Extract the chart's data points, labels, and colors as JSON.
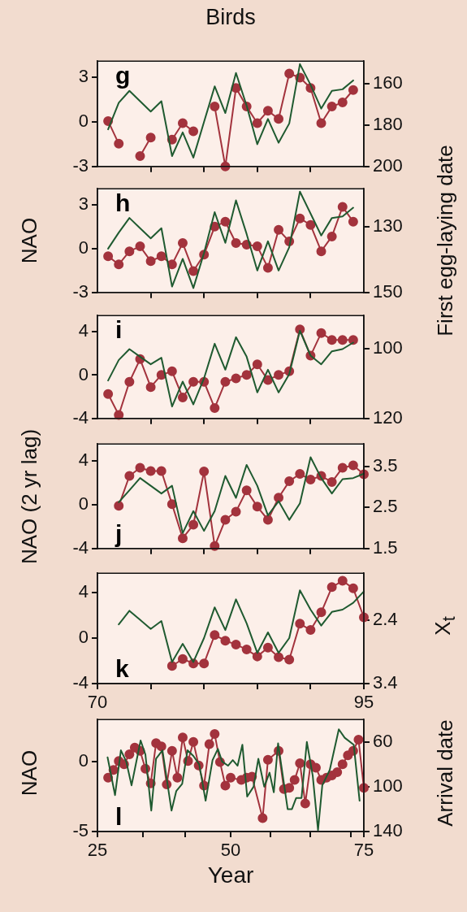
{
  "chart_data": [
    {
      "type": "line",
      "title": "Birds",
      "annotations": [
        "g"
      ],
      "xlim": [
        70,
        95
      ],
      "xticks": [
        {
          "value": 75,
          "label": null
        },
        {
          "value": 80,
          "label": null
        },
        {
          "value": 85,
          "label": null
        },
        {
          "value": 90,
          "label": null
        }
      ],
      "ylim": [
        -3,
        4.1
      ],
      "yticks": [
        -3,
        0,
        3
      ],
      "y2lim": [
        200,
        149
      ],
      "y2ticks": [
        160,
        180,
        200
      ],
      "tick_labels": "y",
      "series": [
        {
          "color": "#1f5a30",
          "marker": "none",
          "x": [
            71,
            72,
            73,
            74,
            75,
            76,
            77,
            78,
            79,
            80,
            81,
            82,
            83,
            84,
            85,
            86,
            87,
            88,
            89,
            90,
            91,
            92,
            93,
            94
          ],
          "values": [
            -0.5,
            1.3,
            2.1,
            1.4,
            0.7,
            1.4,
            -2.3,
            -0.7,
            -2.4,
            0,
            2.4,
            0.6,
            3.3,
            1.1,
            -1.5,
            0.2,
            -1.4,
            -0.1,
            3.9,
            2.5,
            0.9,
            2.1,
            2.2,
            2.8
          ]
        },
        {
          "color": "#a3333d",
          "marker": "circle",
          "axis": "y2",
          "x": [
            71,
            72,
            73,
            74,
            75,
            76,
            77,
            78,
            79,
            80,
            81,
            82,
            83,
            84,
            85,
            86,
            87,
            88,
            89,
            90,
            91,
            92,
            93,
            94
          ],
          "values": [
            178,
            189,
            null,
            195,
            186,
            null,
            187,
            179,
            183,
            null,
            171,
            200,
            162,
            171,
            179,
            173,
            177,
            155,
            157,
            162,
            179,
            171,
            169,
            163
          ]
        }
      ]
    },
    {
      "type": "line",
      "annotations": [
        "h"
      ],
      "ylabel": "NAO",
      "y2label": "First egg-laying date",
      "xlim": [
        70,
        95
      ],
      "xticks": [
        {
          "value": 75,
          "label": null
        },
        {
          "value": 80,
          "label": null
        },
        {
          "value": 85,
          "label": null
        },
        {
          "value": 90,
          "label": null
        }
      ],
      "ylim": [
        -3,
        4.1
      ],
      "yticks": [
        -3,
        0,
        3
      ],
      "y2lim": [
        150,
        118.5
      ],
      "y2ticks": [
        130,
        150
      ],
      "tick_labels": "y",
      "series": [
        {
          "color": "#1f5a30",
          "marker": "none",
          "x": [
            71,
            72,
            73,
            74,
            75,
            76,
            77,
            78,
            79,
            80,
            81,
            82,
            83,
            84,
            85,
            86,
            87,
            88,
            89,
            90,
            91,
            92,
            93,
            94
          ],
          "values": [
            0,
            1.1,
            2.1,
            1.4,
            0.7,
            1.4,
            -2.6,
            -0.7,
            -2.7,
            -0.3,
            2.5,
            0.4,
            3.3,
            1.0,
            -1.5,
            0.5,
            -1.5,
            0.1,
            3.9,
            2.4,
            0.9,
            2.1,
            2.2,
            2.8
          ]
        },
        {
          "color": "#a3333d",
          "marker": "circle",
          "axis": "y2",
          "x": [
            71,
            72,
            73,
            74,
            75,
            76,
            77,
            78,
            79,
            80,
            81,
            82,
            83,
            84,
            85,
            86,
            87,
            88,
            89,
            90,
            91,
            92,
            93,
            94
          ],
          "values": [
            139,
            141.5,
            137.5,
            136,
            140.5,
            139,
            141.5,
            135,
            143.5,
            138.5,
            130,
            128.5,
            135,
            135.5,
            136,
            142.5,
            131,
            134.5,
            127.5,
            129.5,
            137.5,
            133,
            124,
            128.5
          ]
        }
      ]
    },
    {
      "type": "line",
      "annotations": [
        "i"
      ],
      "xlim": [
        70,
        95
      ],
      "xticks": [
        {
          "value": 75,
          "label": null
        },
        {
          "value": 80,
          "label": null
        },
        {
          "value": 85,
          "label": null
        },
        {
          "value": 90,
          "label": null
        }
      ],
      "ylim": [
        -4,
        5.5
      ],
      "yticks": [
        -4,
        0,
        4
      ],
      "y2lim": [
        120,
        90.5
      ],
      "y2ticks": [
        100,
        120
      ],
      "tick_labels": "y",
      "series": [
        {
          "color": "#1f5a30",
          "marker": "none",
          "x": [
            71,
            72,
            73,
            74,
            75,
            76,
            77,
            78,
            79,
            80,
            81,
            82,
            83,
            84,
            85,
            86,
            87,
            88,
            89,
            90,
            91,
            92,
            93,
            94
          ],
          "values": [
            -0.5,
            1.4,
            2.4,
            1.7,
            1.0,
            1.6,
            -2.9,
            -0.6,
            -2.7,
            -0.3,
            2.9,
            0.5,
            3.5,
            1.7,
            -1.6,
            0.5,
            -1.6,
            0.1,
            4.1,
            1.8,
            1.0,
            2.2,
            2.4,
            3.0
          ]
        },
        {
          "color": "#a3333d",
          "marker": "circle",
          "axis": "y2",
          "x": [
            71,
            72,
            73,
            74,
            75,
            76,
            77,
            78,
            79,
            80,
            81,
            82,
            83,
            84,
            85,
            86,
            87,
            88,
            89,
            90,
            91,
            92,
            93,
            94
          ],
          "values": [
            113,
            119,
            109.5,
            103,
            111,
            107.5,
            106.5,
            114,
            109.5,
            109.5,
            117,
            109.5,
            108.5,
            107.5,
            104.5,
            109,
            107.5,
            106.5,
            94.5,
            102,
            95.5,
            97.5,
            97.5,
            97.5
          ]
        }
      ]
    },
    {
      "type": "line",
      "annotations": [
        "j"
      ],
      "ylabel": "NAO (2 yr lag)",
      "xlim": [
        70,
        95
      ],
      "xticks": [
        {
          "value": 75,
          "label": null
        },
        {
          "value": 80,
          "label": null
        },
        {
          "value": 85,
          "label": null
        },
        {
          "value": 90,
          "label": null
        }
      ],
      "ylim": [
        -4,
        5.5
      ],
      "yticks": [
        -4,
        0,
        4
      ],
      "y2lim": [
        1.5,
        4.05
      ],
      "y2ticks": [
        1.5,
        2.5,
        3.5
      ],
      "tick_labels": "y",
      "series": [
        {
          "color": "#1f5a30",
          "marker": "none",
          "x": [
            72,
            73,
            74,
            75,
            76,
            77,
            78,
            79,
            80,
            81,
            82,
            83,
            84,
            85,
            86,
            87,
            88,
            89,
            90,
            91,
            92,
            93,
            94,
            95
          ],
          "values": [
            0.2,
            1.3,
            2.4,
            1.7,
            1.0,
            1.7,
            -2.6,
            -0.6,
            -2.4,
            -0.6,
            2.6,
            0.6,
            3.6,
            1.7,
            -1.0,
            0.3,
            -1.4,
            0.1,
            4.3,
            2.4,
            1.0,
            2.3,
            2.4,
            2.8
          ]
        },
        {
          "color": "#a3333d",
          "marker": "circle",
          "axis": "y2",
          "x": [
            72,
            73,
            74,
            75,
            76,
            77,
            78,
            79,
            80,
            81,
            82,
            83,
            84,
            85,
            86,
            87,
            88,
            89,
            90,
            91,
            92,
            93,
            94,
            95
          ],
          "values": [
            2.54,
            3.27,
            3.47,
            3.39,
            3.39,
            2.58,
            1.75,
            2.08,
            3.38,
            1.56,
            2.2,
            2.4,
            2.92,
            2.52,
            2.2,
            2.74,
            3.14,
            3.32,
            3.18,
            3.27,
            3.12,
            3.47,
            3.53,
            3.31
          ]
        }
      ]
    },
    {
      "type": "line",
      "annotations": [
        "k"
      ],
      "y2label": "X$_{t}$",
      "xlim": [
        70,
        95
      ],
      "xticks": [
        70,
        {
          "value": 75,
          "label": null
        },
        {
          "value": 80,
          "label": null
        },
        {
          "value": 85,
          "label": null
        },
        {
          "value": 90,
          "label": null
        },
        95
      ],
      "ylim": [
        -4,
        5.7
      ],
      "yticks": [
        -4,
        0,
        4
      ],
      "y2lim": [
        3.4,
        1.65
      ],
      "y2ticks": [
        2.4,
        3.4
      ],
      "series": [
        {
          "color": "#1f5a30",
          "marker": "none",
          "x": [
            72,
            73,
            74,
            75,
            76,
            77,
            78,
            79,
            80,
            81,
            82,
            83,
            84,
            85,
            86,
            87,
            88,
            89,
            90,
            91,
            92,
            93,
            94,
            95
          ],
          "values": [
            1.2,
            2.4,
            1.6,
            0.8,
            1.5,
            -2.1,
            -0.5,
            -2.1,
            0,
            2.7,
            0.7,
            3.4,
            1.3,
            -1.3,
            0.5,
            -1.3,
            0,
            4.2,
            2.5,
            1.1,
            2.3,
            2.5,
            3.1,
            4.1
          ]
        },
        {
          "color": "#a3333d",
          "marker": "circle",
          "axis": "y2",
          "x": [
            77,
            78,
            79,
            80,
            81,
            82,
            83,
            84,
            85,
            86,
            87,
            88,
            89,
            90,
            91,
            92,
            93,
            94,
            95
          ],
          "values": [
            3.12,
            3.01,
            3.08,
            3.08,
            2.63,
            2.72,
            2.78,
            2.86,
            2.97,
            2.83,
            2.98,
            3.02,
            2.45,
            2.55,
            2.27,
            1.87,
            1.77,
            1.89,
            2.35
          ]
        }
      ]
    },
    {
      "type": "line",
      "annotations": [
        "l"
      ],
      "ylabel": "NAO",
      "y2label": "Arrival date",
      "xlabel": "Year",
      "xlim": [
        25,
        75
      ],
      "xticks": [
        25,
        {
          "value": 33.5,
          "label": null
        },
        {
          "value": 41.5,
          "label": null
        },
        50,
        {
          "value": 57.5,
          "label": null
        },
        {
          "value": 65,
          "label": null
        },
        {
          "value": 72.5,
          "label": null
        },
        75
      ],
      "ylim": [
        -5,
        3
      ],
      "yticks": [
        -5,
        0
      ],
      "y2lim": [
        140,
        40
      ],
      "y2ticks": [
        60,
        100,
        140
      ],
      "series": [
        {
          "color": "#1f5a30",
          "marker": "none",
          "x": [
            26.9,
            28.3,
            29.4,
            30.4,
            31.4,
            33.1,
            34.0,
            35.1,
            36.0,
            37.2,
            38.9,
            39.8,
            40.9,
            41.9,
            43.0,
            44.1,
            45.3,
            46.6,
            47.6,
            48.4,
            49.5,
            50.4,
            51.3,
            52.2,
            53.1,
            54.3,
            55.2,
            56.3,
            57.3,
            58.1,
            58.9,
            60.7,
            61.5,
            62.3,
            63.3,
            64.3,
            65.4,
            66.4,
            67.2,
            68.6,
            70.3,
            71.4,
            73.1,
            74.2
          ],
          "values": [
            0.3,
            -2.4,
            0.8,
            0,
            -1.7,
            1.5,
            0.5,
            -3.5,
            0.2,
            0.8,
            -3.5,
            -2.1,
            -1.6,
            0.8,
            0.4,
            -0.2,
            -2.8,
            0.1,
            0.9,
            0,
            -0.3,
            0.1,
            -0.3,
            1.2,
            -2.5,
            -1.8,
            0.2,
            -1.8,
            -0.8,
            -2.2,
            1.3,
            -3.4,
            -3.4,
            -2.6,
            -2.6,
            1.4,
            -1.0,
            -4.9,
            -1.7,
            -0.6,
            2.3,
            1.7,
            1.2,
            -2.8
          ]
        },
        {
          "color": "#a3333d",
          "marker": "circle",
          "axis": "y2",
          "x": [
            27,
            28,
            29,
            30,
            31,
            32,
            33,
            34,
            35,
            36,
            37,
            38,
            39,
            40,
            41,
            42,
            43,
            44,
            45,
            46,
            47,
            48,
            49,
            50,
            52,
            53,
            54,
            56,
            57,
            59,
            60,
            61,
            62,
            63,
            64,
            65,
            66,
            67,
            68,
            69,
            70,
            71,
            72,
            73,
            74,
            75
          ],
          "values": [
            92,
            85,
            77,
            80,
            71,
            65,
            68,
            84,
            97,
            61,
            64,
            98,
            68,
            92,
            56,
            77,
            60,
            81,
            99,
            62,
            53,
            78,
            99,
            92,
            94,
            92,
            91,
            128,
            76,
            68,
            102,
            101,
            94,
            79,
            115,
            80,
            83,
            94,
            92,
            90,
            87,
            80,
            72,
            68,
            58,
            101
          ]
        }
      ]
    }
  ]
}
